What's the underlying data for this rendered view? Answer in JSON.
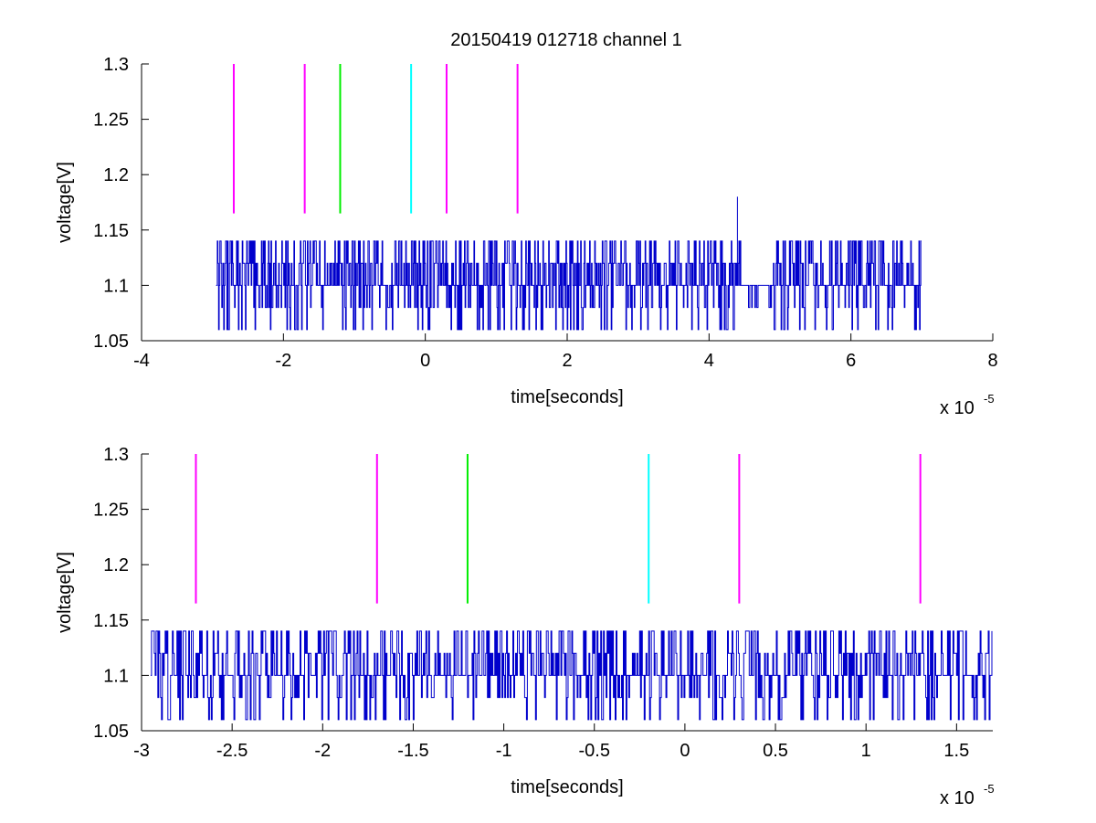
{
  "title": "20150419 012718 channel 1",
  "colors": {
    "signal": "#0000cc",
    "magenta": "#ff00ff",
    "green": "#00ee00",
    "cyan": "#00ffff",
    "axis": "#000000"
  },
  "chart_data": [
    {
      "type": "line",
      "xlabel": "time[seconds]",
      "ylabel": "voltage[V]",
      "x_exponent_base": "x 10",
      "x_exponent_power": "-5",
      "xlim": [
        -4e-05,
        8e-05
      ],
      "ylim": [
        1.05,
        1.3
      ],
      "xticks": [
        -4,
        -2,
        0,
        2,
        4,
        6,
        8
      ],
      "xtick_labels": [
        "-4",
        "-2",
        "0",
        "2",
        "4",
        "6",
        "8"
      ],
      "yticks": [
        1.05,
        1.1,
        1.15,
        1.2,
        1.25,
        1.3
      ],
      "ytick_labels": [
        "1.05",
        "1.1",
        "1.15",
        "1.2",
        "1.25",
        "1.3"
      ],
      "grid": false,
      "signal": {
        "x_start": -2.95e-05,
        "x_end": 7e-05,
        "levels": [
          1.06,
          1.08,
          1.1,
          1.12,
          1.14
        ],
        "baseline": 1.1,
        "spike": {
          "x": 4.4e-05,
          "y": 1.18
        },
        "flat_interval": [
          4.45e-05,
          4.9e-05
        ]
      },
      "markers": [
        {
          "x": -2.7e-05,
          "color": "magenta",
          "y_low": 1.165,
          "y_high": 1.3
        },
        {
          "x": -1.7e-05,
          "color": "magenta",
          "y_low": 1.165,
          "y_high": 1.3
        },
        {
          "x": -1.2e-05,
          "color": "green",
          "y_low": 1.165,
          "y_high": 1.3
        },
        {
          "x": -2e-06,
          "color": "cyan",
          "y_low": 1.165,
          "y_high": 1.3
        },
        {
          "x": 3e-06,
          "color": "magenta",
          "y_low": 1.165,
          "y_high": 1.3
        },
        {
          "x": 1.3e-05,
          "color": "magenta",
          "y_low": 1.165,
          "y_high": 1.3
        }
      ]
    },
    {
      "type": "line",
      "xlabel": "time[seconds]",
      "ylabel": "voltage[V]",
      "x_exponent_base": "x 10",
      "x_exponent_power": "-5",
      "xlim": [
        -3e-05,
        1.7e-05
      ],
      "ylim": [
        1.05,
        1.3
      ],
      "xticks": [
        -3,
        -2.5,
        -2,
        -1.5,
        -1,
        -0.5,
        0,
        0.5,
        1,
        1.5
      ],
      "xtick_labels": [
        "-3",
        "-2.5",
        "-2",
        "-1.5",
        "-1",
        "-0.5",
        "0",
        "0.5",
        "1",
        "1.5"
      ],
      "yticks": [
        1.05,
        1.1,
        1.15,
        1.2,
        1.25,
        1.3
      ],
      "ytick_labels": [
        "1.05",
        "1.1",
        "1.15",
        "1.2",
        "1.25",
        "1.3"
      ],
      "grid": false,
      "signal": {
        "x_start": -2.95e-05,
        "x_end": 1.7e-05,
        "levels": [
          1.06,
          1.08,
          1.1,
          1.12,
          1.14
        ],
        "baseline": 1.1
      },
      "markers": [
        {
          "x": -2.7e-05,
          "color": "magenta",
          "y_low": 1.165,
          "y_high": 1.3
        },
        {
          "x": -1.7e-05,
          "color": "magenta",
          "y_low": 1.165,
          "y_high": 1.3
        },
        {
          "x": -1.2e-05,
          "color": "green",
          "y_low": 1.165,
          "y_high": 1.3
        },
        {
          "x": -2e-06,
          "color": "cyan",
          "y_low": 1.165,
          "y_high": 1.3
        },
        {
          "x": 3e-06,
          "color": "magenta",
          "y_low": 1.165,
          "y_high": 1.3
        },
        {
          "x": 1.3e-05,
          "color": "magenta",
          "y_low": 1.165,
          "y_high": 1.3
        }
      ]
    }
  ]
}
